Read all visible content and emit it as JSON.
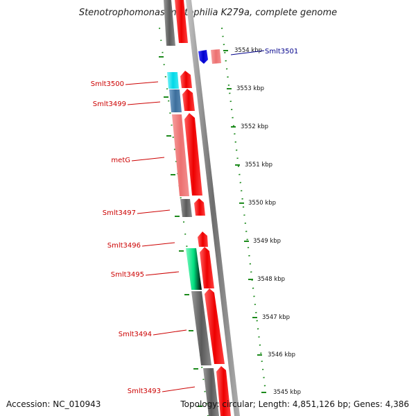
{
  "title": "Stenotrophomonas maltophilia K279a, complete genome",
  "footer": {
    "accession": "Accession: NC_010943",
    "topology": "Topology: circular; Length: 4,851,126 bp; Genes: 4,386"
  },
  "colors": {
    "backbone": "#8a8a8a",
    "ticks": "#1c8a1c",
    "forward_label": "#cc0000",
    "reverse_label": "#00008b"
  },
  "kbp_labels": [
    {
      "text": "3554 kbp",
      "pos_kbp": 3554
    },
    {
      "text": "3553 kbp",
      "pos_kbp": 3553
    },
    {
      "text": "3552 kbp",
      "pos_kbp": 3552
    },
    {
      "text": "3551 kbp",
      "pos_kbp": 3551
    },
    {
      "text": "3550 kbp",
      "pos_kbp": 3550
    },
    {
      "text": "3549 kbp",
      "pos_kbp": 3549
    },
    {
      "text": "3548 kbp",
      "pos_kbp": 3548
    },
    {
      "text": "3547 kbp",
      "pos_kbp": 3547
    },
    {
      "text": "3546 kbp",
      "pos_kbp": 3546
    },
    {
      "text": "3545 kbp",
      "pos_kbp": 3545
    }
  ],
  "genes": [
    {
      "name": "Smlt3501",
      "strand": "reverse",
      "color": "#0000dd",
      "cds_color": "#f08080"
    },
    {
      "name": "Smlt3500",
      "strand": "forward",
      "color": "#00e5ee",
      "cds_color": "#ff0000"
    },
    {
      "name": "Smlt3499",
      "strand": "forward",
      "color": "#4682b4",
      "cds_color": "#ff0000"
    },
    {
      "name": "metG",
      "strand": "forward",
      "color": "#f08080",
      "cds_color": "#ff0000"
    },
    {
      "name": "Smlt3497",
      "strand": "forward",
      "color": "#666666",
      "cds_color": "#ff0000"
    },
    {
      "name": "Smlt3496",
      "strand": "forward",
      "color": "",
      "cds_color": "#ff0000"
    },
    {
      "name": "Smlt3495",
      "strand": "forward",
      "color": "#00ee88",
      "cds_color": "#ff0000"
    },
    {
      "name": "Smlt3494",
      "strand": "forward",
      "color": "#666666",
      "cds_color": "#ff0000"
    },
    {
      "name": "Smlt3493",
      "strand": "forward",
      "color": "#666666",
      "cds_color": "#ff0000"
    }
  ]
}
